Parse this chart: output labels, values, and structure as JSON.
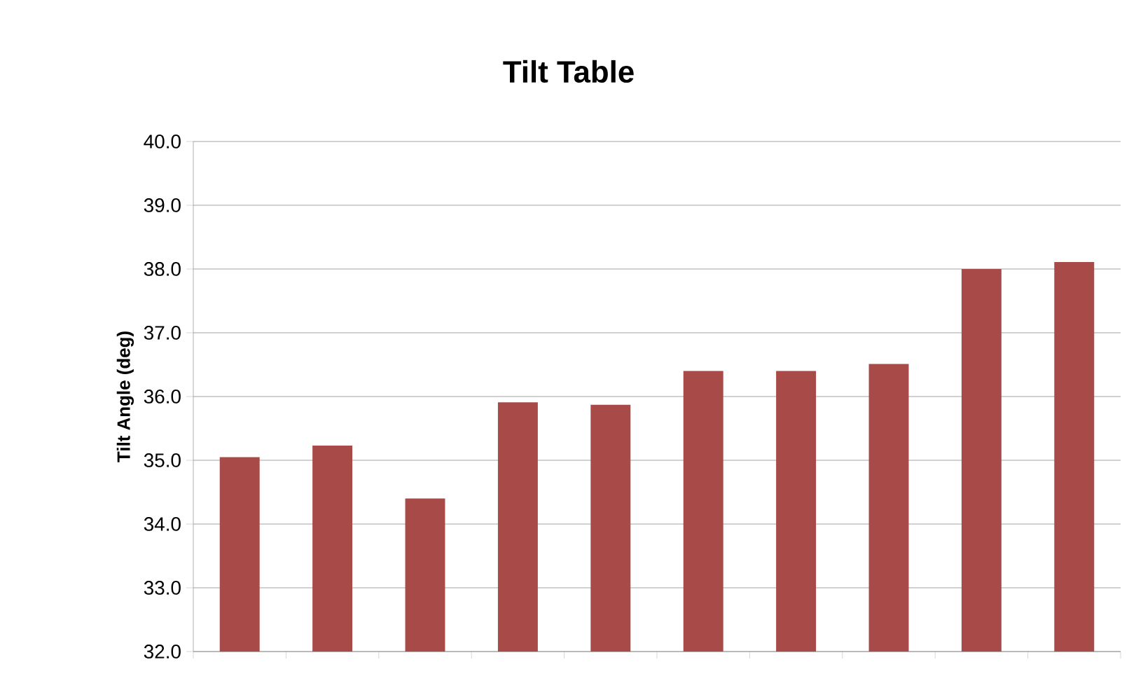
{
  "chart_data": {
    "type": "bar",
    "title": "Tilt Table",
    "ylabel": "Tilt Angle (deg)",
    "categories": [
      null,
      null,
      null,
      null,
      null,
      null,
      null,
      null,
      null,
      null
    ],
    "values": [
      35.05,
      35.23,
      34.4,
      35.91,
      35.87,
      36.4,
      36.4,
      36.51,
      38.0,
      38.11
    ],
    "color": "#a84a47",
    "ylim": [
      32,
      40
    ],
    "yticks": [
      {
        "value": 32,
        "label": "32.0"
      },
      {
        "value": 33,
        "label": "33.0"
      },
      {
        "value": 34,
        "label": "34.0"
      },
      {
        "value": 35,
        "label": "35.0"
      },
      {
        "value": 36,
        "label": "36.0"
      },
      {
        "value": 37,
        "label": "37.0"
      },
      {
        "value": 38,
        "label": "38.0"
      },
      {
        "value": 39,
        "label": "39.0"
      },
      {
        "value": 40,
        "label": "40.0"
      }
    ],
    "grid": "y",
    "tick_labels": "y"
  }
}
